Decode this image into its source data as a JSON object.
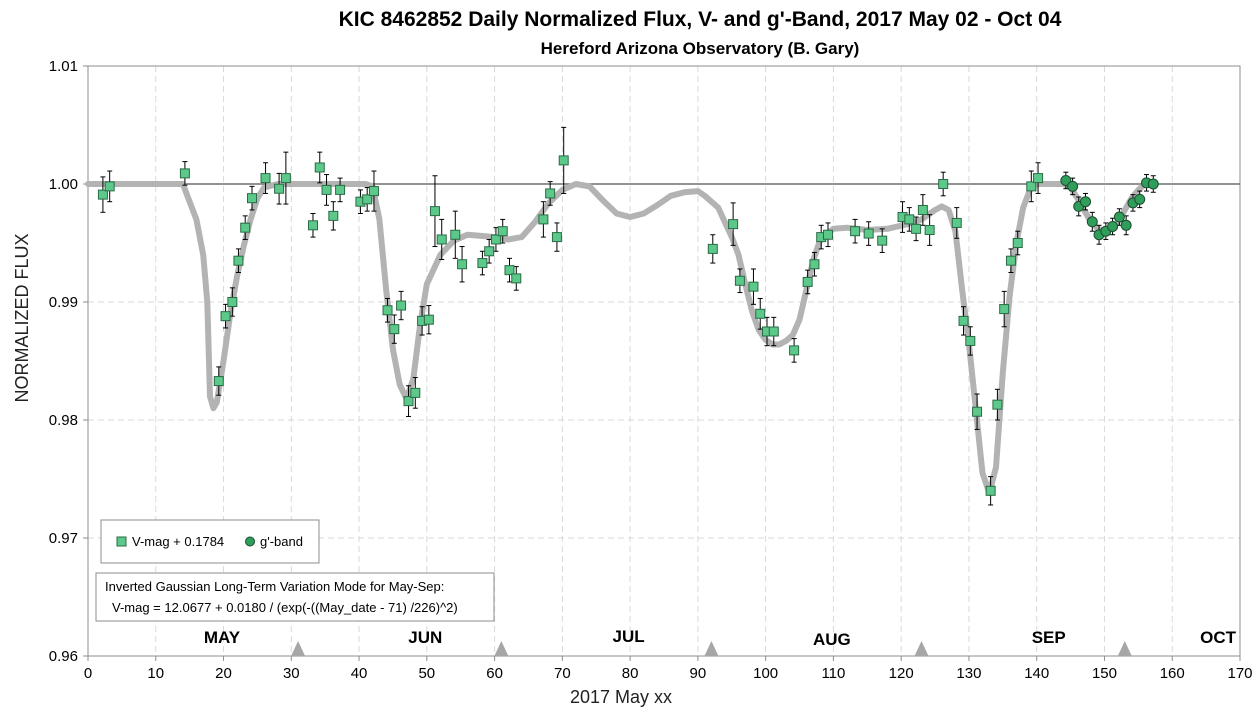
{
  "chart_data": {
    "type": "scatter",
    "title": "KIC 8462852 Daily  Normalized Flux, V- and g'-Band, 2017 May 02 - Oct 04",
    "subtitle": "Hereford Arizona Observatory (B. Gary)",
    "xlabel": "2017 May xx",
    "ylabel": "NORMALIZED FLUX",
    "xlim": [
      0,
      170
    ],
    "ylim": [
      0.96,
      1.01
    ],
    "x_ticks": [
      0,
      10,
      20,
      30,
      40,
      50,
      60,
      70,
      80,
      90,
      100,
      110,
      120,
      130,
      140,
      150,
      160,
      170
    ],
    "y_ticks": [
      0.96,
      0.97,
      0.98,
      0.99,
      1.0,
      1.01
    ],
    "y_tick_labels": [
      "0.96",
      "0.97",
      "0.98",
      "0.99",
      "1.00",
      "1.01"
    ],
    "grid": true,
    "reference_line": 1.0,
    "months": [
      {
        "label": "MAY",
        "x": 18
      },
      {
        "label": "JUN",
        "x": 48
      },
      {
        "label": "JUL",
        "x": 78
      },
      {
        "label": "AUG",
        "x": 108
      },
      {
        "label": "SEP",
        "x": 140
      },
      {
        "label": "OCT",
        "x": 165
      }
    ],
    "month_markers": [
      31,
      61,
      92,
      123,
      153
    ],
    "legend": {
      "placement": "bottom-left",
      "entries": [
        {
          "label": "V-mag + 0.1784",
          "marker": "square",
          "color": "#5cc98a"
        },
        {
          "label": "g'-band",
          "marker": "circle",
          "color": "#2e9e5a"
        }
      ]
    },
    "annotation": {
      "line1": "Inverted Gaussian Long-Term Variation Mode for May-Sep:",
      "line2": "V-mag = 12.0677 + 0.0180 / (exp(-((May_date - 71) /226)^2)"
    },
    "series": [
      {
        "name": "V-mag + 0.1784",
        "marker": "square",
        "color": "#5cc98a",
        "points": [
          [
            2.2,
            0.9991,
            0.0015
          ],
          [
            3.2,
            0.9998,
            0.0013
          ],
          [
            14.3,
            1.0009,
            0.001
          ],
          [
            19.3,
            0.9833,
            0.0012
          ],
          [
            20.3,
            0.9888,
            0.001
          ],
          [
            21.3,
            0.99,
            0.0012
          ],
          [
            22.2,
            0.9935,
            0.001
          ],
          [
            23.2,
            0.9963,
            0.001
          ],
          [
            24.2,
            0.9988,
            0.001
          ],
          [
            26.2,
            1.0005,
            0.0013
          ],
          [
            28.2,
            0.9996,
            0.0013
          ],
          [
            29.2,
            1.0005,
            0.0022
          ],
          [
            33.2,
            0.9965,
            0.001
          ],
          [
            34.2,
            1.0014,
            0.0013
          ],
          [
            35.2,
            0.9995,
            0.0013
          ],
          [
            36.2,
            0.9973,
            0.0012
          ],
          [
            37.2,
            0.9995,
            0.001
          ],
          [
            40.2,
            0.9985,
            0.001
          ],
          [
            41.2,
            0.9987,
            0.001
          ],
          [
            42.2,
            0.9994,
            0.0017
          ],
          [
            44.2,
            0.9893,
            0.001
          ],
          [
            45.2,
            0.9877,
            0.0012
          ],
          [
            46.2,
            0.9897,
            0.0012
          ],
          [
            47.3,
            0.9816,
            0.0013
          ],
          [
            48.3,
            0.9823,
            0.0013
          ],
          [
            49.3,
            0.9884,
            0.0012
          ],
          [
            50.3,
            0.9885,
            0.0012
          ],
          [
            51.2,
            0.9977,
            0.003
          ],
          [
            52.2,
            0.9953,
            0.0017
          ],
          [
            54.2,
            0.9957,
            0.002
          ],
          [
            55.2,
            0.9932,
            0.0015
          ],
          [
            58.2,
            0.9933,
            0.001
          ],
          [
            59.2,
            0.9943,
            0.001
          ],
          [
            60.2,
            0.9953,
            0.001
          ],
          [
            61.2,
            0.996,
            0.001
          ],
          [
            62.2,
            0.9927,
            0.001
          ],
          [
            63.2,
            0.992,
            0.001
          ],
          [
            67.2,
            0.997,
            0.0015
          ],
          [
            68.2,
            0.9992,
            0.001
          ],
          [
            69.2,
            0.9955,
            0.0012
          ],
          [
            70.2,
            1.002,
            0.0028
          ],
          [
            92.2,
            0.9945,
            0.0012
          ],
          [
            95.2,
            0.9966,
            0.0018
          ],
          [
            96.2,
            0.9918,
            0.001
          ],
          [
            98.2,
            0.9913,
            0.0015
          ],
          [
            99.2,
            0.989,
            0.0013
          ],
          [
            100.2,
            0.9875,
            0.0012
          ],
          [
            101.2,
            0.9875,
            0.0012
          ],
          [
            104.2,
            0.9859,
            0.001
          ],
          [
            106.2,
            0.9917,
            0.001
          ],
          [
            107.2,
            0.9932,
            0.001
          ],
          [
            108.2,
            0.9955,
            0.001
          ],
          [
            109.2,
            0.9957,
            0.001
          ],
          [
            113.2,
            0.996,
            0.001
          ],
          [
            115.2,
            0.9958,
            0.001
          ],
          [
            117.2,
            0.9952,
            0.001
          ],
          [
            120.2,
            0.9972,
            0.0013
          ],
          [
            121.2,
            0.997,
            0.001
          ],
          [
            122.2,
            0.9962,
            0.001
          ],
          [
            123.2,
            0.9978,
            0.0013
          ],
          [
            124.2,
            0.9961,
            0.0013
          ],
          [
            126.2,
            1.0,
            0.001
          ],
          [
            128.2,
            0.9967,
            0.0013
          ],
          [
            129.2,
            0.9884,
            0.0012
          ],
          [
            130.2,
            0.9867,
            0.0012
          ],
          [
            131.2,
            0.9807,
            0.0015
          ],
          [
            133.2,
            0.974,
            0.0012
          ],
          [
            134.2,
            0.9813,
            0.0013
          ],
          [
            135.2,
            0.9894,
            0.0015
          ],
          [
            136.2,
            0.9935,
            0.001
          ],
          [
            137.2,
            0.995,
            0.001
          ],
          [
            139.2,
            0.9998,
            0.0013
          ],
          [
            140.2,
            1.0005,
            0.0013
          ]
        ]
      },
      {
        "name": "g'-band",
        "marker": "circle",
        "color": "#2e9e5a",
        "points": [
          [
            144.3,
            1.0003,
            0.0007
          ],
          [
            145.3,
            0.9998,
            0.0007
          ],
          [
            146.2,
            0.9981,
            0.0008
          ],
          [
            147.2,
            0.9985,
            0.0007
          ],
          [
            148.2,
            0.9968,
            0.0008
          ],
          [
            149.2,
            0.9957,
            0.0008
          ],
          [
            150.2,
            0.996,
            0.0007
          ],
          [
            151.2,
            0.9964,
            0.0007
          ],
          [
            152.2,
            0.9972,
            0.0007
          ],
          [
            153.2,
            0.9965,
            0.0008
          ],
          [
            154.2,
            0.9984,
            0.0007
          ],
          [
            155.2,
            0.9987,
            0.0007
          ],
          [
            156.2,
            1.0001,
            0.0007
          ],
          [
            157.2,
            1.0,
            0.0007
          ]
        ]
      }
    ],
    "model_curve": {
      "color": "#b3b3b3",
      "points": [
        [
          0,
          1.0
        ],
        [
          14,
          1.0
        ],
        [
          15,
          0.9985
        ],
        [
          16,
          0.997
        ],
        [
          17,
          0.994
        ],
        [
          17.6,
          0.99
        ],
        [
          18.0,
          0.982
        ],
        [
          18.5,
          0.981
        ],
        [
          19,
          0.9815
        ],
        [
          20,
          0.985
        ],
        [
          21,
          0.989
        ],
        [
          22,
          0.9922
        ],
        [
          23,
          0.9948
        ],
        [
          24,
          0.997
        ],
        [
          25,
          0.9988
        ],
        [
          26,
          0.9997
        ],
        [
          28,
          1.0
        ],
        [
          41,
          1.0
        ],
        [
          42,
          0.9998
        ],
        [
          43,
          0.997
        ],
        [
          44,
          0.991
        ],
        [
          45,
          0.986
        ],
        [
          46,
          0.983
        ],
        [
          47,
          0.9818
        ],
        [
          48,
          0.9835
        ],
        [
          49,
          0.988
        ],
        [
          50,
          0.9915
        ],
        [
          52,
          0.994
        ],
        [
          54,
          0.9952
        ],
        [
          56,
          0.9957
        ],
        [
          58,
          0.9956
        ],
        [
          60,
          0.9955
        ],
        [
          62,
          0.9953
        ],
        [
          64,
          0.9955
        ],
        [
          66,
          0.9968
        ],
        [
          68,
          0.9984
        ],
        [
          70,
          0.9995
        ],
        [
          72,
          1.0
        ],
        [
          74,
          0.9998
        ],
        [
          76,
          0.9986
        ],
        [
          78,
          0.9975
        ],
        [
          80,
          0.9972
        ],
        [
          82,
          0.9975
        ],
        [
          84,
          0.9982
        ],
        [
          86,
          0.999
        ],
        [
          88,
          0.9993
        ],
        [
          90,
          0.9994
        ],
        [
          91,
          0.999
        ],
        [
          93,
          0.998
        ],
        [
          95,
          0.9955
        ],
        [
          96,
          0.994
        ],
        [
          97,
          0.9915
        ],
        [
          98,
          0.9892
        ],
        [
          99,
          0.9876
        ],
        [
          100,
          0.9868
        ],
        [
          101,
          0.9864
        ],
        [
          102,
          0.9864
        ],
        [
          103,
          0.9867
        ],
        [
          104,
          0.9872
        ],
        [
          105,
          0.9885
        ],
        [
          106,
          0.991
        ],
        [
          107,
          0.9935
        ],
        [
          108,
          0.9952
        ],
        [
          110,
          0.9962
        ],
        [
          112,
          0.9963
        ],
        [
          115,
          0.9961
        ],
        [
          118,
          0.9962
        ],
        [
          121,
          0.9966
        ],
        [
          123,
          0.997
        ],
        [
          125,
          0.9978
        ],
        [
          126,
          0.9981
        ],
        [
          127,
          0.9978
        ],
        [
          128,
          0.996
        ],
        [
          129,
          0.991
        ],
        [
          130,
          0.9865
        ],
        [
          131,
          0.981
        ],
        [
          132,
          0.9755
        ],
        [
          133,
          0.9738
        ],
        [
          134,
          0.976
        ],
        [
          135,
          0.984
        ],
        [
          136,
          0.9905
        ],
        [
          137,
          0.995
        ],
        [
          138,
          0.998
        ],
        [
          139,
          0.9995
        ],
        [
          140,
          1.0
        ],
        [
          144,
          1.0
        ],
        [
          145,
          0.9997
        ],
        [
          146,
          0.9988
        ],
        [
          147,
          0.9978
        ],
        [
          148,
          0.9968
        ],
        [
          149,
          0.9962
        ],
        [
          150,
          0.996
        ],
        [
          151,
          0.9962
        ],
        [
          152,
          0.9968
        ],
        [
          153,
          0.9978
        ],
        [
          154,
          0.9988
        ],
        [
          155,
          0.9995
        ],
        [
          156,
          1.0
        ]
      ]
    }
  }
}
